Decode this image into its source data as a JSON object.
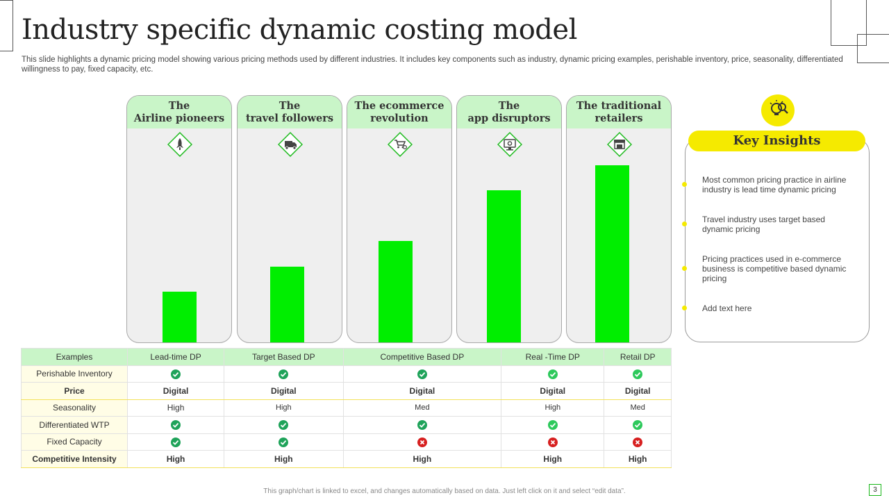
{
  "title": "Industry specific dynamic costing model",
  "subtitle": "This slide highlights a dynamic pricing model showing various pricing methods used by different industries. It includes key components such as industry, dynamic pricing examples, perishable inventory, price, seasonality, differentiated willingness to pay, fixed capacity,  etc.",
  "chart_data": {
    "type": "bar",
    "title": "",
    "categories": [
      "The Airline pioneers",
      "The travel followers",
      "The ecommerce revolution",
      "The app disruptors",
      "The traditional retailers"
    ],
    "values": [
      1,
      1.5,
      2,
      3,
      3.5
    ],
    "ylim": [
      0,
      3.5
    ],
    "xlabel": "",
    "ylabel": ""
  },
  "columns": [
    {
      "line1": "The",
      "line2": "Airline pioneers",
      "icon": "rocket-icon"
    },
    {
      "line1": "The",
      "line2": "travel followers",
      "icon": "delivery-truck-icon"
    },
    {
      "line1": "The ecommerce",
      "line2": "revolution",
      "icon": "shopping-cart-icon"
    },
    {
      "line1": "The",
      "line2": "app disruptors",
      "icon": "computer-settings-icon"
    },
    {
      "line1": "The traditional",
      "line2": "retailers",
      "icon": "storefront-icon"
    }
  ],
  "table": {
    "header": [
      "Examples",
      "Lead-time DP",
      "Target Based DP",
      "Competitive  Based DP",
      "Real -Time DP",
      "Retail DP"
    ],
    "rows": [
      {
        "label": "Perishable Inventory",
        "bold": false,
        "cells": [
          "check",
          "check",
          "check",
          "check",
          "check"
        ]
      },
      {
        "label": "Price",
        "bold": true,
        "cells": [
          "Digital",
          "Digital",
          "Digital",
          "Digital",
          "Digital"
        ]
      },
      {
        "label": "Seasonality",
        "bold": false,
        "cells": [
          "High",
          "High",
          "Med",
          "High",
          "Med"
        ]
      },
      {
        "label": "Differentiated WTP",
        "bold": false,
        "cells": [
          "check",
          "check",
          "check",
          "check",
          "check"
        ]
      },
      {
        "label": "Fixed Capacity",
        "bold": false,
        "cells": [
          "check",
          "check",
          "cross",
          "cross",
          "cross"
        ]
      },
      {
        "label": "Competitive  Intensity",
        "bold": true,
        "cells": [
          "High",
          "High",
          "High",
          "High",
          "High"
        ]
      }
    ]
  },
  "insights": {
    "title": "Key Insights",
    "items": [
      "Most common pricing practice in airline industry is lead time dynamic pricing",
      "Travel industry uses target based dynamic pricing",
      "Pricing practices used in e-commerce business is competitive based dynamic pricing",
      "Add text here"
    ]
  },
  "footer": "This graph/chart is linked to excel, and changes automatically based on data. Just left click on it and select “edit data”.",
  "page_number": "3",
  "colors": {
    "bar": "#00ee00",
    "header_green": "#c9f5c8",
    "accent_yellow": "#f5ea00"
  }
}
